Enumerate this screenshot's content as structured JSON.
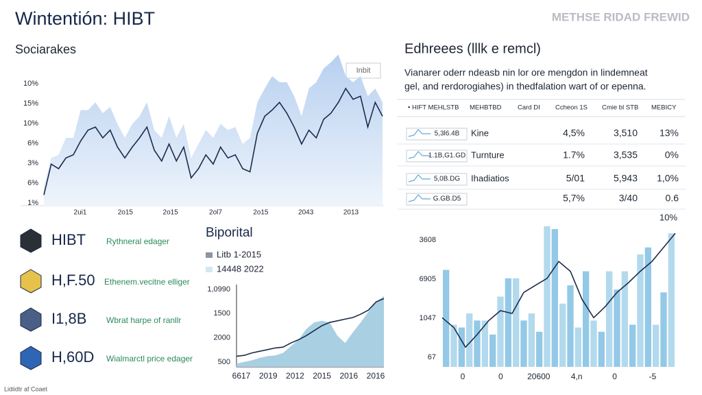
{
  "header": {
    "title": "Wintentión: HIBT",
    "watermark": "METHSE RIDAD FREWID",
    "footer": "Lidiidtr af Coaet"
  },
  "chart_data": [
    {
      "type": "area",
      "title": "Sociarakes",
      "annotation": "Inbit",
      "x_labels": [
        "2ui1",
        "2o15",
        "2o15",
        "2ol7",
        "2o15",
        "2043",
        "2013"
      ],
      "y_labels": [
        "10%",
        "15%",
        "10%",
        "6%",
        "3%",
        "6%",
        "1%"
      ],
      "ylim": [
        0,
        100
      ],
      "series": [
        {
          "kind": "area",
          "color": "#c3d8f3",
          "values": [
            13,
            31,
            33,
            44,
            44,
            62,
            62,
            67,
            60,
            64,
            53,
            44,
            53,
            58,
            67,
            49,
            44,
            58,
            44,
            53,
            31,
            40,
            49,
            44,
            53,
            49,
            51,
            40,
            44,
            67,
            76,
            84,
            80,
            80,
            71,
            58,
            76,
            80,
            89,
            93,
            98,
            84,
            80,
            84,
            71,
            76,
            67
          ]
        },
        {
          "kind": "line",
          "color": "#1b2a4a",
          "values": [
            7,
            27,
            24,
            31,
            33,
            42,
            49,
            51,
            44,
            49,
            38,
            31,
            38,
            44,
            51,
            36,
            29,
            40,
            29,
            38,
            18,
            24,
            33,
            27,
            38,
            31,
            33,
            24,
            22,
            47,
            58,
            62,
            67,
            60,
            51,
            40,
            49,
            44,
            56,
            60,
            67,
            76,
            69,
            71,
            51,
            67,
            58
          ]
        }
      ]
    },
    {
      "type": "area",
      "title": "Biporital",
      "x_labels": [
        "6617",
        "2019",
        "2012",
        "2015",
        "2016",
        "2016"
      ],
      "y_labels": [
        "1,0990",
        "1500",
        "2000",
        "500"
      ],
      "ylim": [
        0,
        100
      ],
      "series": [
        {
          "name": "Litb 1-2015",
          "kind": "line",
          "color": "#1b2a4a",
          "values": [
            13,
            14,
            17,
            19,
            21,
            23,
            24,
            29,
            33,
            38,
            44,
            50,
            54,
            56,
            58,
            60,
            64,
            69,
            79,
            83
          ]
        },
        {
          "name": "14448 2022",
          "kind": "area",
          "color": "#a9cfe3",
          "values": [
            4,
            6,
            8,
            11,
            13,
            14,
            17,
            25,
            33,
            46,
            54,
            56,
            54,
            38,
            29,
            42,
            54,
            67,
            79,
            86
          ]
        }
      ]
    },
    {
      "type": "bar",
      "annotation": "10%",
      "x_labels": [
        "0",
        "0",
        "20600",
        "4,n",
        "0",
        "-5"
      ],
      "y_labels": [
        "3608",
        "6905",
        "1047",
        "67"
      ],
      "ylim": [
        0,
        100
      ],
      "series": [
        {
          "kind": "bar",
          "color": "#93c9e6",
          "values": [
            69,
            30,
            28,
            38,
            33,
            33,
            23,
            50,
            63,
            63,
            33,
            38,
            25,
            100,
            98,
            45,
            58,
            28,
            68,
            33,
            25,
            68,
            55,
            68,
            30,
            80,
            85,
            30,
            53,
            95
          ]
        },
        {
          "kind": "line",
          "color": "#1b2a4a",
          "values": [
            35,
            28,
            14,
            23,
            33,
            40,
            38,
            53,
            58,
            63,
            75,
            68,
            48,
            35,
            43,
            53,
            60,
            68,
            75,
            85,
            95
          ]
        }
      ]
    }
  ],
  "table": {
    "title": "Edhreees (lllk e remcl)",
    "description": [
      "Vianarer oderr ndeasb nin lor ore mengdon in lindemneat",
      "gel, and rerdorogiahes) in thedfalation wart of or epenna."
    ],
    "columns": [
      "• HIFT MEHLSTB",
      "MEHBTBD",
      "Card DI",
      "Ccheon 1S",
      "Cmie bl STB",
      "MEBICY"
    ],
    "rows": [
      [
        "5,3l6.4B",
        "Kine",
        "4,5%",
        "3,510",
        "13%"
      ],
      [
        "1.1B,G1.GD",
        "Turnture",
        "1.7%",
        "3,535",
        "0%"
      ],
      [
        "5,0B.DG",
        "Ihadiatios",
        "5/01",
        "5,943",
        "1,0%"
      ],
      [
        "G.GB.D5",
        "",
        "5,7%",
        "3/40",
        "0.6"
      ]
    ]
  },
  "assets": [
    {
      "name": "HIBT",
      "description": "Rythneral edager"
    },
    {
      "name": "H,F.50",
      "description": "Ethenem.vecitne elliger"
    },
    {
      "name": "I1,8B",
      "description": "Wbrat harpe of ranllr"
    },
    {
      "name": "H,60D",
      "description": "Wialmarctl price edager"
    }
  ]
}
